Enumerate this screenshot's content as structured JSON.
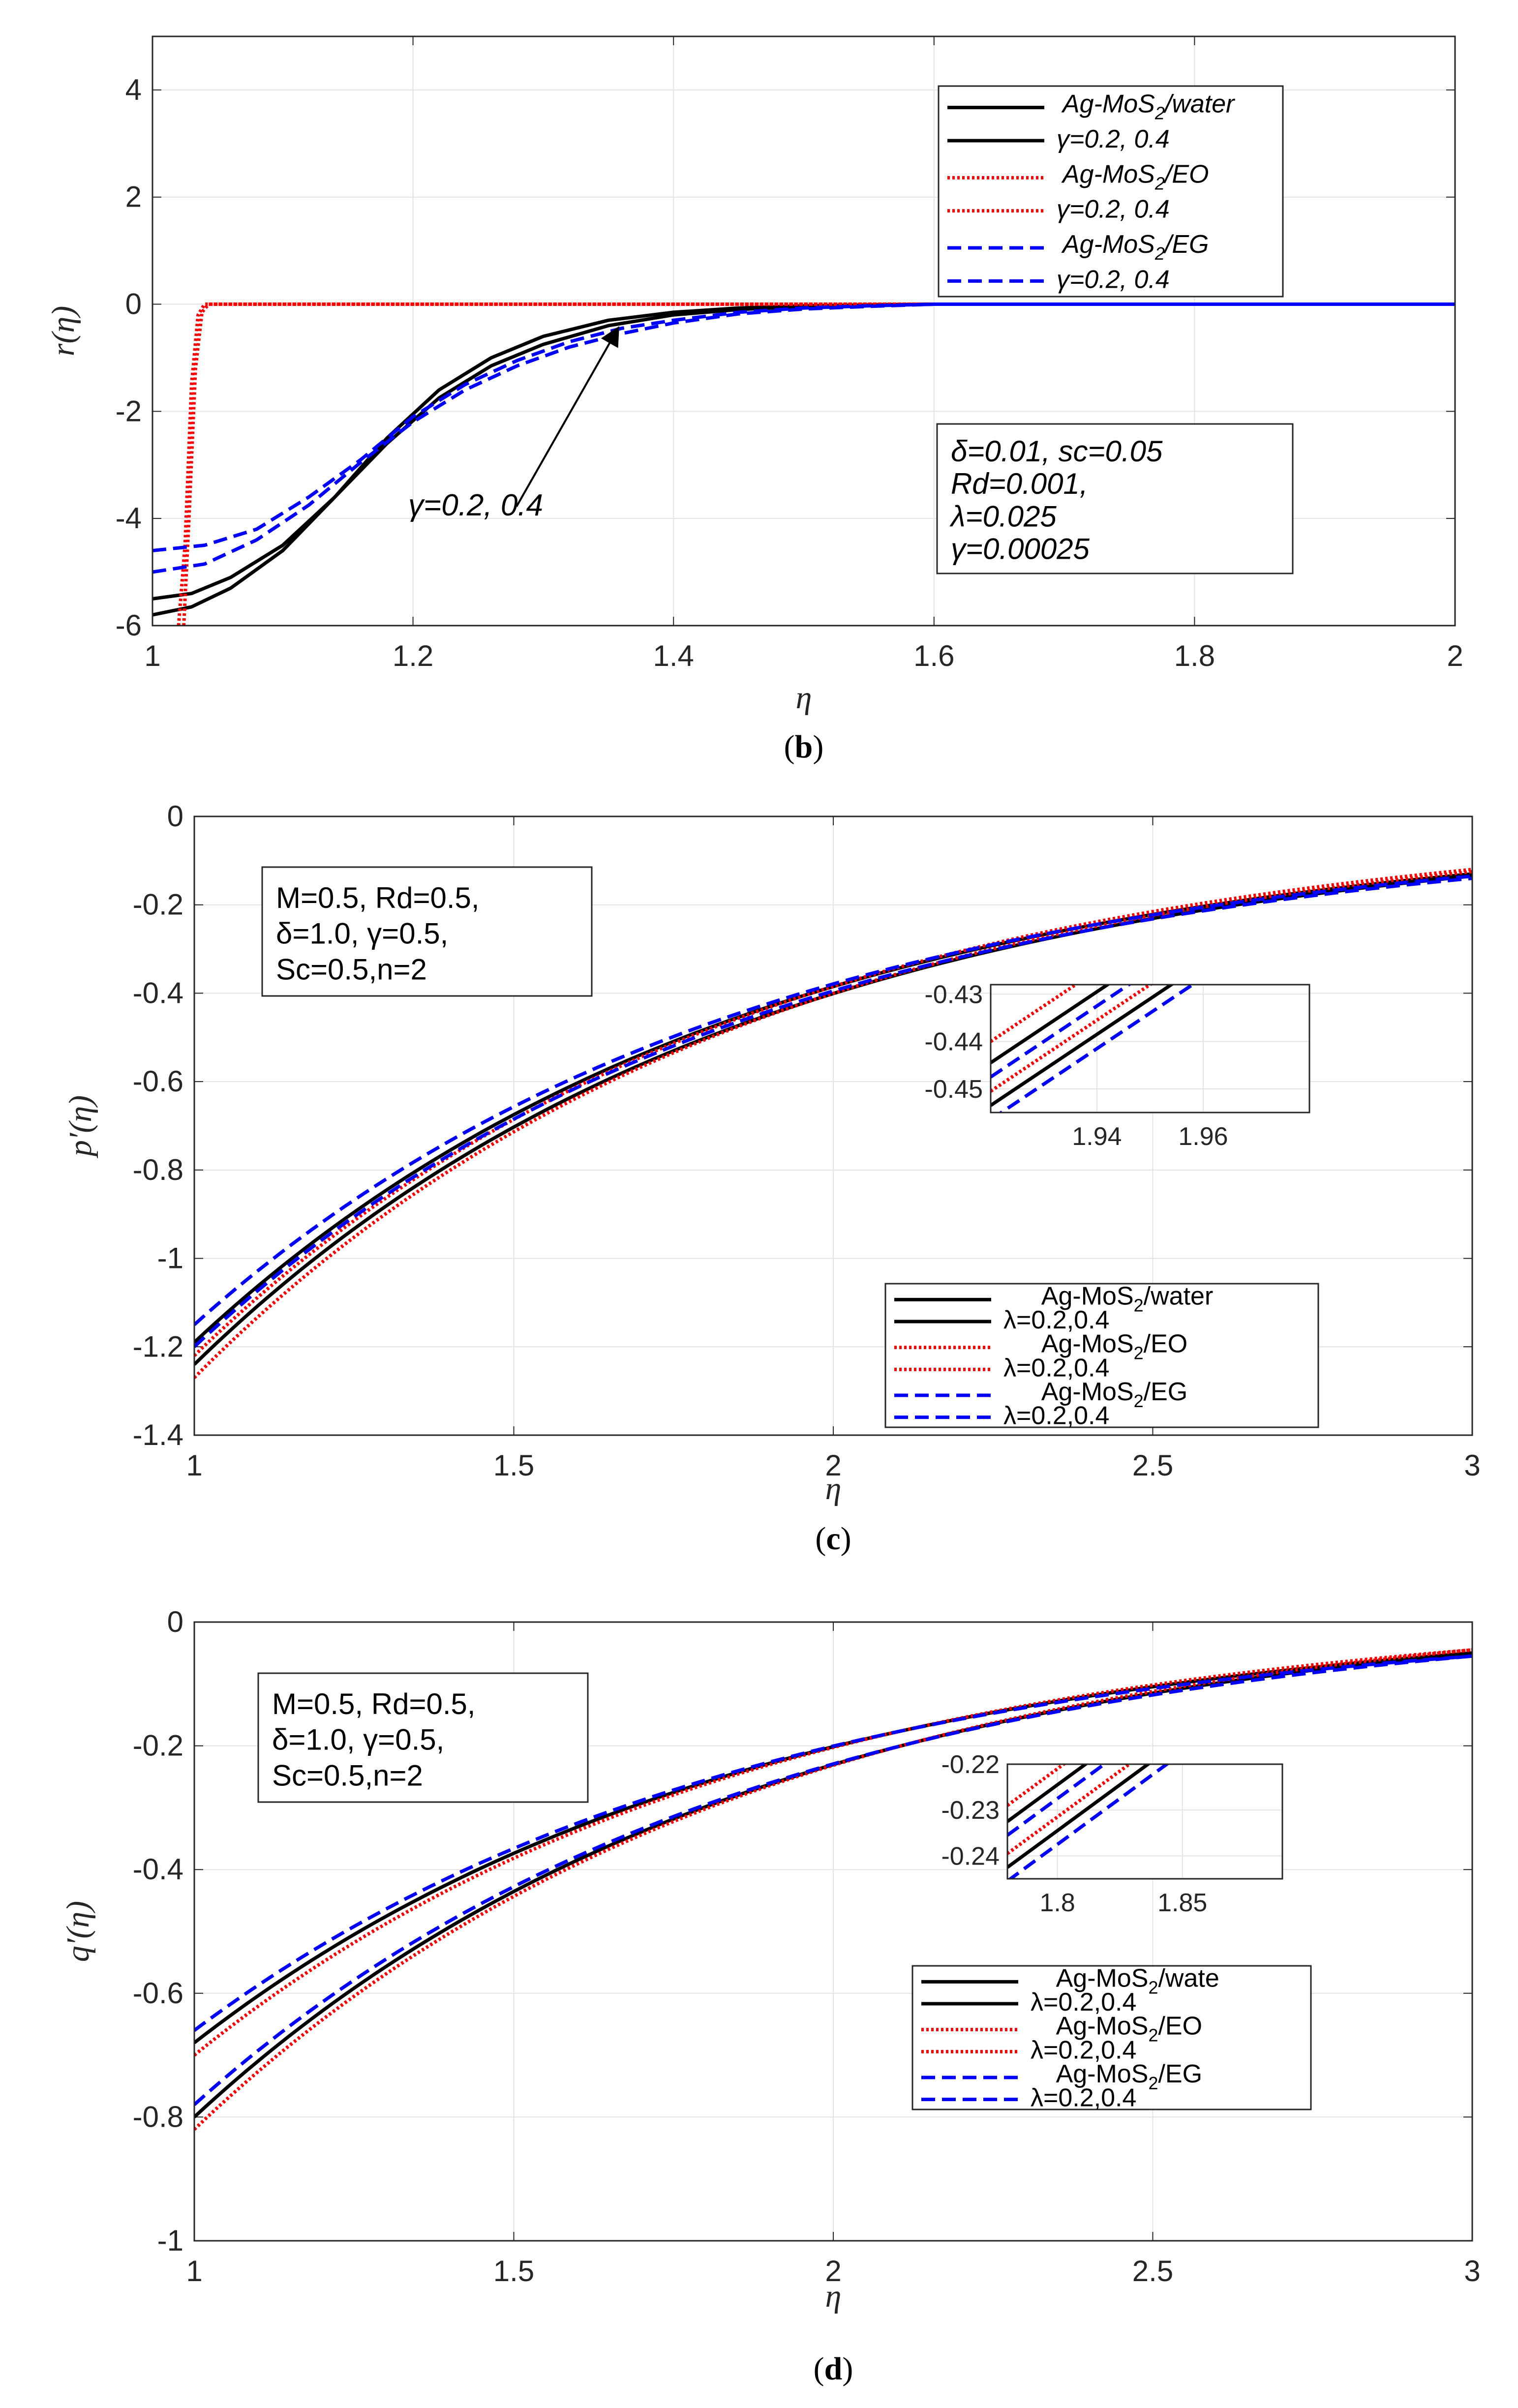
{
  "chart_data": [
    {
      "id": "b",
      "type": "line",
      "caption": "b",
      "xlabel": "η",
      "ylabel": "r(η)",
      "xlim": [
        1,
        2
      ],
      "ylim": [
        -6,
        5
      ],
      "xticks": [
        1,
        1.2,
        1.4,
        1.6,
        1.8,
        2
      ],
      "yticks": [
        -6,
        -4,
        -2,
        0,
        2,
        4
      ],
      "xtick_labels": [
        "1",
        "1.2",
        "1.4",
        "1.6",
        "1.8",
        "2"
      ],
      "ytick_labels": [
        "-6",
        "-4",
        "-2",
        "0",
        "2",
        "4"
      ],
      "grid": true,
      "legend_position": "top-right",
      "legend": [
        {
          "fluid": "Ag-MoS",
          "sub": "2",
          "suffix": "/water",
          "color": "#000000",
          "style": "solid"
        },
        {
          "text": "γ=0.2, 0.4",
          "color": "#000000",
          "style": "solid"
        },
        {
          "fluid": "Ag-MoS",
          "sub": "2",
          "suffix": "/EO",
          "color": "#ff0000",
          "style": "dotted"
        },
        {
          "text": "γ=0.2, 0.4",
          "color": "#ff0000",
          "style": "dotted"
        },
        {
          "fluid": "Ag-MoS",
          "sub": "2",
          "suffix": "/EG",
          "color": "#0000ff",
          "style": "dashed"
        },
        {
          "text": "γ=0.2, 0.4",
          "color": "#0000ff",
          "style": "dashed"
        }
      ],
      "params": [
        "δ=0.01, sc=0.05",
        " Rd=0.001,",
        "λ=0.025",
        "γ=0.00025"
      ],
      "arrow_label": "γ=0.2, 0.4",
      "series": [
        {
          "name": "Ag-MoS2/water γ=0.2",
          "color": "#000000",
          "style": "solid",
          "x": [
            1,
            1.03,
            1.06,
            1.1,
            1.14,
            1.18,
            1.22,
            1.26,
            1.3,
            1.35,
            1.4,
            1.45,
            1.5,
            1.6,
            2
          ],
          "y": [
            -5.5,
            -5.4,
            -5.1,
            -4.5,
            -3.6,
            -2.5,
            -1.6,
            -1.0,
            -0.6,
            -0.3,
            -0.15,
            -0.07,
            -0.03,
            0,
            0
          ]
        },
        {
          "name": "Ag-MoS2/water γ=0.4",
          "color": "#000000",
          "style": "solid",
          "x": [
            1,
            1.03,
            1.06,
            1.1,
            1.14,
            1.18,
            1.22,
            1.26,
            1.3,
            1.35,
            1.4,
            1.45,
            1.5,
            1.6,
            2
          ],
          "y": [
            -5.8,
            -5.65,
            -5.3,
            -4.6,
            -3.6,
            -2.6,
            -1.75,
            -1.15,
            -0.75,
            -0.4,
            -0.2,
            -0.1,
            -0.04,
            0,
            0
          ]
        },
        {
          "name": "Ag-MoS2/EO γ=0.2",
          "color": "#ff0000",
          "style": "dotted",
          "x": [
            1.02,
            1.025,
            1.03,
            1.035,
            1.04,
            2
          ],
          "y": [
            -6,
            -4.5,
            -1.5,
            -0.2,
            0,
            0
          ]
        },
        {
          "name": "Ag-MoS2/EO γ=0.4",
          "color": "#ff0000",
          "style": "dotted",
          "x": [
            1.024,
            1.028,
            1.033,
            1.038,
            1.043,
            2
          ],
          "y": [
            -6,
            -4.0,
            -1.2,
            -0.15,
            0,
            0
          ]
        },
        {
          "name": "Ag-MoS2/EG γ=0.2",
          "color": "#0000ff",
          "style": "dashed",
          "x": [
            1,
            1.04,
            1.08,
            1.12,
            1.16,
            1.2,
            1.24,
            1.28,
            1.32,
            1.36,
            1.4,
            1.45,
            1.5,
            1.55,
            1.6,
            2
          ],
          "y": [
            -4.6,
            -4.5,
            -4.2,
            -3.6,
            -2.9,
            -2.1,
            -1.5,
            -1.05,
            -0.7,
            -0.45,
            -0.3,
            -0.15,
            -0.07,
            -0.03,
            0,
            0
          ]
        },
        {
          "name": "Ag-MoS2/EG γ=0.4",
          "color": "#0000ff",
          "style": "dashed",
          "x": [
            1,
            1.04,
            1.08,
            1.12,
            1.16,
            1.2,
            1.24,
            1.28,
            1.32,
            1.36,
            1.4,
            1.45,
            1.5,
            1.55,
            1.6,
            2
          ],
          "y": [
            -5.0,
            -4.85,
            -4.4,
            -3.75,
            -2.95,
            -2.2,
            -1.6,
            -1.15,
            -0.8,
            -0.55,
            -0.35,
            -0.18,
            -0.09,
            -0.04,
            0,
            0
          ]
        }
      ]
    },
    {
      "id": "c",
      "type": "line",
      "caption": "c",
      "xlabel": "η",
      "ylabel": "p′(η)",
      "xlim": [
        1,
        3
      ],
      "ylim": [
        -1.4,
        0
      ],
      "xticks": [
        1,
        1.5,
        2,
        2.5,
        3
      ],
      "yticks": [
        -1.4,
        -1.2,
        -1,
        -0.8,
        -0.6,
        -0.4,
        -0.2,
        0
      ],
      "xtick_labels": [
        "1",
        "1.5",
        "2",
        "2.5",
        "3"
      ],
      "ytick_labels": [
        "-1.4",
        "-1.2",
        "-1",
        "-0.8",
        "-0.6",
        "-0.4",
        "-0.2",
        "0"
      ],
      "grid": true,
      "legend_position": "bottom-right",
      "legend": [
        {
          "fluid": "Ag-MoS",
          "sub": "2",
          "suffix": "/water",
          "color": "#000000",
          "style": "solid"
        },
        {
          "text": "λ=0.2,0.4",
          "color": "#000000",
          "style": "solid"
        },
        {
          "fluid": "Ag-MoS",
          "sub": "2",
          "suffix": "/EO",
          "color": "#ff0000",
          "style": "dotted"
        },
        {
          "text": "λ=0.2,0.4",
          "color": "#ff0000",
          "style": "dotted"
        },
        {
          "fluid": "Ag-MoS",
          "sub": "2",
          "suffix": "/EG",
          "color": "#0000ff",
          "style": "dashed"
        },
        {
          "text": "λ=0.2,0.4",
          "color": "#0000ff",
          "style": "dashed"
        }
      ],
      "params": [
        "M=0.5, Rd=0.5,",
        "δ=1.0, γ=0.5,",
        "Sc=0.5,n=2"
      ],
      "series": [
        {
          "name": "water λ=0.2",
          "color": "#000000",
          "style": "solid",
          "y1": -1.19,
          "cross": 1.55,
          "s1": -0.13
        },
        {
          "name": "water λ=0.4",
          "color": "#000000",
          "style": "solid",
          "y1": -1.24,
          "cross": 1.55,
          "s1": -0.135
        },
        {
          "name": "EO λ=0.2",
          "color": "#ff0000",
          "style": "dotted",
          "y1": -1.22,
          "cross": 1.55,
          "s1": -0.12
        },
        {
          "name": "EO λ=0.4",
          "color": "#ff0000",
          "style": "dotted",
          "y1": -1.27,
          "cross": 1.55,
          "s1": -0.125
        },
        {
          "name": "EG λ=0.2",
          "color": "#0000ff",
          "style": "dashed",
          "y1": -1.15,
          "cross": 1.55,
          "s1": -0.135
        },
        {
          "name": "EG λ=0.4",
          "color": "#0000ff",
          "style": "dashed",
          "y1": -1.2,
          "cross": 1.55,
          "s1": -0.14
        }
      ],
      "inset": {
        "xlim": [
          1.92,
          1.98
        ],
        "ylim": [
          -0.455,
          -0.428
        ],
        "xticks": [
          1.94,
          1.96
        ],
        "yticks": [
          -0.45,
          -0.44,
          -0.43
        ],
        "xtick_labels": [
          "1.94",
          "1.96"
        ],
        "ytick_labels": [
          "-0.45",
          "-0.44",
          "-0.43"
        ],
        "lines": [
          {
            "color": "#ff0000",
            "style": "dotted",
            "y0": -0.44,
            "slope": 0.75
          },
          {
            "color": "#000000",
            "style": "solid",
            "y0": -0.4445,
            "slope": 0.75
          },
          {
            "color": "#0000ff",
            "style": "dashed",
            "y0": -0.4475,
            "slope": 0.75
          },
          {
            "color": "#ff0000",
            "style": "dotted",
            "y0": -0.4505,
            "slope": 0.75
          },
          {
            "color": "#000000",
            "style": "solid",
            "y0": -0.4535,
            "slope": 0.75
          },
          {
            "color": "#0000ff",
            "style": "dashed",
            "y0": -0.4565,
            "slope": 0.75
          }
        ]
      }
    },
    {
      "id": "d",
      "type": "line",
      "caption": "d",
      "xlabel": "η",
      "ylabel": "q′(η)",
      "xlim": [
        1,
        3
      ],
      "ylim": [
        -1,
        0
      ],
      "xticks": [
        1,
        1.5,
        2,
        2.5,
        3
      ],
      "yticks": [
        -1,
        -0.8,
        -0.6,
        -0.4,
        -0.2,
        0
      ],
      "xtick_labels": [
        "1",
        "1.5",
        "2",
        "2.5",
        "3"
      ],
      "ytick_labels": [
        "-1",
        "-0.8",
        "-0.6",
        "-0.4",
        "-0.2",
        "0"
      ],
      "grid": true,
      "legend_position": "bottom-right",
      "legend": [
        {
          "fluid": "Ag-MoS",
          "sub": "2",
          "suffix": "/wate",
          "color": "#000000",
          "style": "solid"
        },
        {
          "text": "λ=0.2,0.4",
          "color": "#000000",
          "style": "solid"
        },
        {
          "fluid": "Ag-MoS",
          "sub": "2",
          "suffix": "/EO",
          "color": "#ff0000",
          "style": "dotted"
        },
        {
          "text": "λ=0.2,0.4",
          "color": "#ff0000",
          "style": "dotted"
        },
        {
          "fluid": "Ag-MoS",
          "sub": "2",
          "suffix": "/EG",
          "color": "#0000ff",
          "style": "dashed"
        },
        {
          "text": "λ=0.2,0.4",
          "color": "#0000ff",
          "style": "dashed"
        }
      ],
      "params": [
        "M=0.5, Rd=0.5,",
        "δ=1.0, γ=0.5,",
        "Sc=0.5,n=2"
      ],
      "series": [
        {
          "name": "water λ=0.2",
          "color": "#000000",
          "style": "solid",
          "y1": -0.68,
          "cross": 1.5,
          "s1": -0.05
        },
        {
          "name": "water λ=0.4",
          "color": "#000000",
          "style": "solid",
          "y1": -0.8,
          "cross": 1.5,
          "s1": -0.05
        },
        {
          "name": "EO λ=0.2",
          "color": "#ff0000",
          "style": "dotted",
          "y1": -0.7,
          "cross": 1.5,
          "s1": -0.045
        },
        {
          "name": "EO λ=0.4",
          "color": "#ff0000",
          "style": "dotted",
          "y1": -0.82,
          "cross": 1.5,
          "s1": -0.045
        },
        {
          "name": "EG λ=0.2",
          "color": "#0000ff",
          "style": "dashed",
          "y1": -0.66,
          "cross": 1.5,
          "s1": -0.055
        },
        {
          "name": "EG λ=0.4",
          "color": "#0000ff",
          "style": "dashed",
          "y1": -0.78,
          "cross": 1.5,
          "s1": -0.055
        }
      ],
      "inset": {
        "xlim": [
          1.78,
          1.89
        ],
        "ylim": [
          -0.245,
          -0.22
        ],
        "xticks": [
          1.8,
          1.85
        ],
        "yticks": [
          -0.24,
          -0.23,
          -0.22
        ],
        "xtick_labels": [
          "1.8",
          "1.85"
        ],
        "ytick_labels": [
          "-0.24",
          "-0.23",
          "-0.22"
        ],
        "lines": [
          {
            "color": "#ff0000",
            "style": "dotted",
            "y0": -0.229,
            "slope": 0.4
          },
          {
            "color": "#000000",
            "style": "solid",
            "y0": -0.2325,
            "slope": 0.4
          },
          {
            "color": "#0000ff",
            "style": "dashed",
            "y0": -0.2355,
            "slope": 0.4
          },
          {
            "color": "#ff0000",
            "style": "dotted",
            "y0": -0.2395,
            "slope": 0.4
          },
          {
            "color": "#000000",
            "style": "solid",
            "y0": -0.2425,
            "slope": 0.4
          },
          {
            "color": "#0000ff",
            "style": "dashed",
            "y0": -0.2455,
            "slope": 0.4
          }
        ]
      }
    }
  ]
}
